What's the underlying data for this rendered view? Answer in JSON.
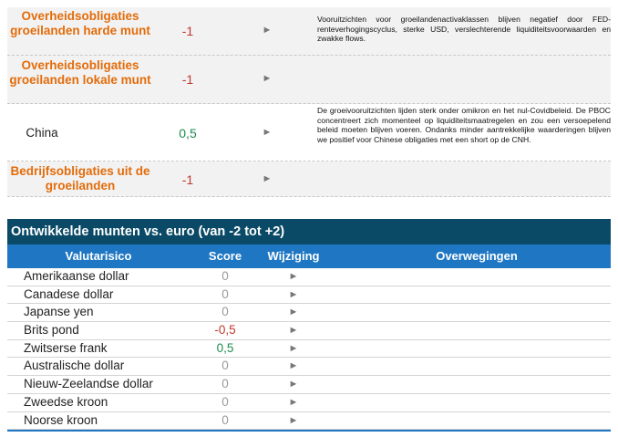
{
  "top_table": {
    "rows": [
      {
        "category": "Overheidsobligaties groeilanden harde munt",
        "score": "-1",
        "arrow": "►",
        "note": "Vooruitzichten voor groeilandenactivaklassen blijven negatief door FED-renteverhogingscyclus, sterke USD, verslechterende liquiditeitsvoorwaarden en zwakke flows."
      },
      {
        "category": "Overheidsobligaties groeilanden lokale munt",
        "score": "-1",
        "arrow": "►",
        "note": ""
      },
      {
        "category": "China",
        "score": "0,5",
        "arrow": "►",
        "note": "De groeivooruitzichten lijden sterk onder omikron en het nul-Covidbeleid. De PBOC concentreert zich momenteel op liquiditeitsmaatregelen en zou een versoepelend beleid moeten blijven voeren. Ondanks minder aantrekkelijke waarderingen blijven we positief voor Chinese obligaties met een short op de CNH."
      },
      {
        "category": "Bedrijfsobligaties uit de groeilanden",
        "score": "-1",
        "arrow": "►",
        "note": ""
      }
    ]
  },
  "currency_table": {
    "title": "Ontwikkelde munten vs. euro (van -2 tot +2)",
    "headers": {
      "risk": "Valutarisico",
      "score": "Score",
      "change": "Wijziging",
      "considerations": "Overwegingen"
    },
    "rows": [
      {
        "name": "Amerikaanse dollar",
        "score": "0",
        "arrow": "►"
      },
      {
        "name": "Canadese dollar",
        "score": "0",
        "arrow": "►"
      },
      {
        "name": "Japanse yen",
        "score": "0",
        "arrow": "►"
      },
      {
        "name": "Brits pond",
        "score": "-0,5",
        "arrow": "►"
      },
      {
        "name": "Zwitserse frank",
        "score": "0,5",
        "arrow": "►"
      },
      {
        "name": "Australische dollar",
        "score": "0",
        "arrow": "►"
      },
      {
        "name": "Nieuw-Zeelandse dollar",
        "score": "0",
        "arrow": "►"
      },
      {
        "name": "Zweedse kroon",
        "score": "0",
        "arrow": "►"
      },
      {
        "name": "Noorse kroon",
        "score": "0",
        "arrow": "►"
      }
    ]
  },
  "colors": {
    "category_orange": "#e36c0a",
    "negative_red": "#c0392b",
    "positive_green": "#1e8c4e",
    "neutral_grey": "#999999",
    "title_navy": "#0b4a66",
    "header_blue": "#1f77c3"
  }
}
